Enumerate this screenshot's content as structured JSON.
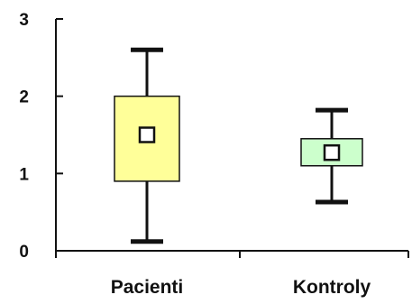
{
  "chart_data": {
    "type": "box",
    "title": "",
    "xlabel": "",
    "ylabel": "",
    "ylim": [
      0,
      3
    ],
    "yticks": [
      0,
      1,
      2,
      3
    ],
    "ytick_labels": [
      "0",
      "1",
      "2",
      "3"
    ],
    "categories": [
      "Pacienti",
      "Kontroly"
    ],
    "boxes": [
      {
        "category": "Pacienti",
        "min": 0.12,
        "q1": 0.9,
        "median": 1.5,
        "q3": 2.0,
        "max": 2.6,
        "fill": "#ffff99"
      },
      {
        "category": "Kontroly",
        "min": 0.63,
        "q1": 1.1,
        "median": 1.27,
        "q3": 1.45,
        "max": 1.82,
        "fill": "#ccffcc"
      }
    ],
    "grid": false,
    "legend": "none",
    "colors": {
      "axis": "#111111",
      "whisker": "#111111",
      "box_border": "#111111",
      "marker_fill": "#ffffff"
    }
  }
}
